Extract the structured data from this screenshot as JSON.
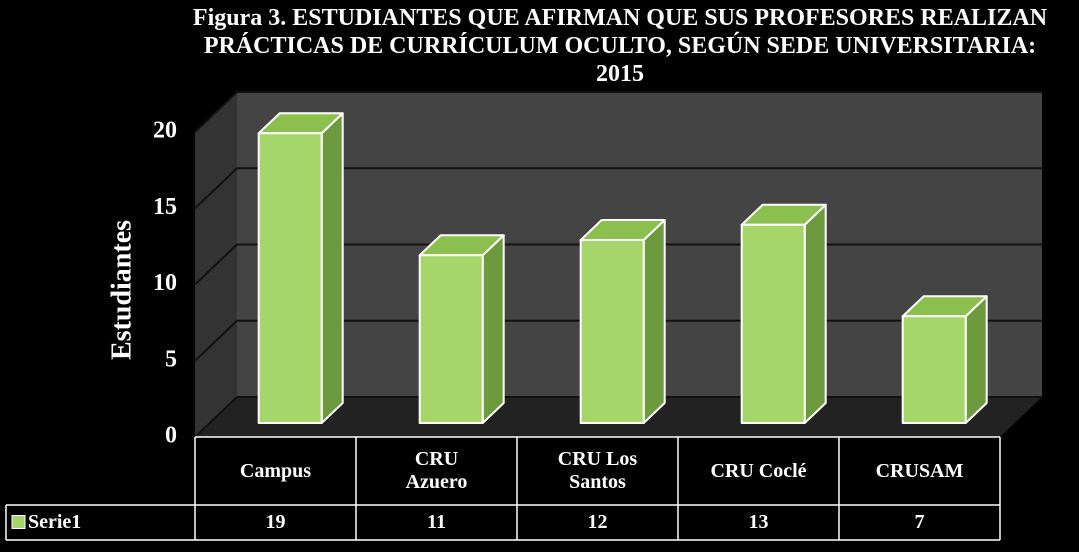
{
  "chart_data": {
    "type": "bar3d",
    "title": "Figura 3. ESTUDIANTES QUE AFIRMAN QUE SUS PROFESORES REALIZAN PRÁCTICAS DE CURRÍCULUM OCULTO, SEGÚN SEDE UNIVERSITARIA: 2015",
    "y_label": "Estudiantes",
    "categories": [
      "Campus",
      "CRU Azuero",
      "CRU Los Santos",
      "CRU Coclé",
      "CRUSAM"
    ],
    "series": [
      {
        "name": "Serie1",
        "color": "#a6d66a",
        "values": [
          19,
          11,
          12,
          13,
          7
        ]
      }
    ],
    "ylim": [
      0,
      20
    ],
    "yticks": [
      0,
      5,
      10,
      15,
      20
    ],
    "grid": true,
    "data_table": true
  }
}
